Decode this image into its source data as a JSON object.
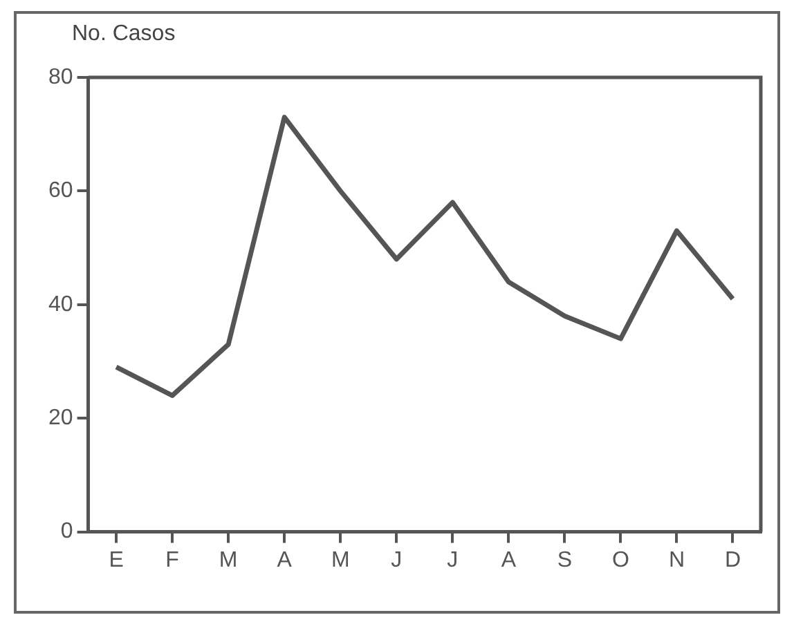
{
  "chart_data": {
    "type": "line",
    "ylabel": "No. Casos",
    "categories": [
      "E",
      "F",
      "M",
      "A",
      "M",
      "J",
      "J",
      "A",
      "S",
      "O",
      "N",
      "D"
    ],
    "series": [
      {
        "color": "#555555",
        "values": [
          29,
          24,
          33,
          73,
          60,
          48,
          58,
          44,
          38,
          34,
          53,
          41
        ]
      }
    ],
    "ylim": [
      0,
      80
    ],
    "yticks": [
      0,
      20,
      40,
      60,
      80
    ],
    "grid": false,
    "legend": false,
    "marker": "none",
    "line_style": "solid"
  }
}
